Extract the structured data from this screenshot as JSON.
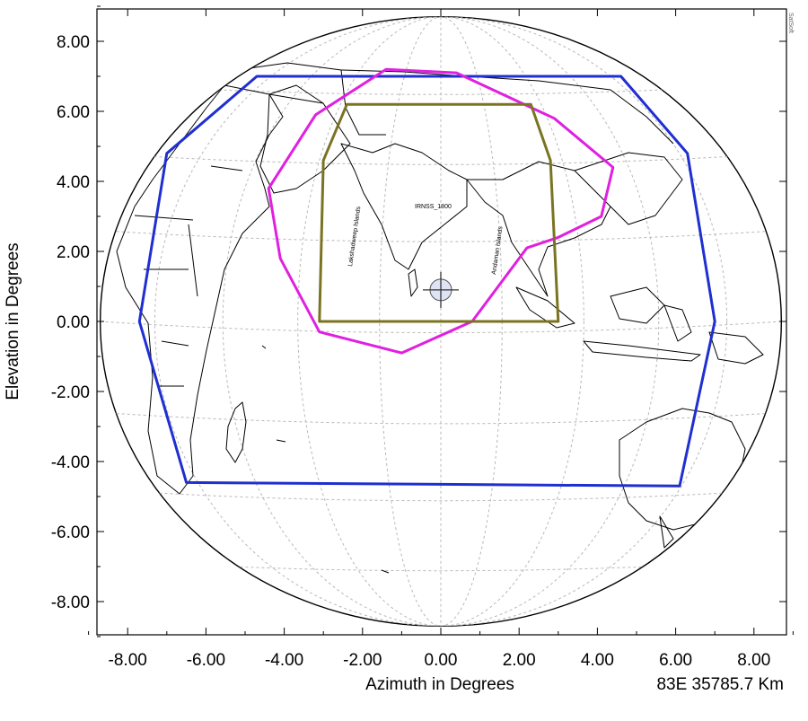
{
  "plot": {
    "xlabel": "Azimuth in Degrees",
    "ylabel": "Elevation in Degrees",
    "footer": "83E 35785.7 Km",
    "corner_mark": "SatSoft",
    "beam_label": "IRNSS_1800",
    "label_left": "Lakshadweep Islands",
    "label_right": "Andaman Islands"
  },
  "chart_data": {
    "type": "map",
    "xlim": [
      -9.0,
      9.0
    ],
    "ylim": [
      -9.0,
      9.0
    ],
    "x_ticks": [
      "-8.00",
      "-6.00",
      "-4.00",
      "-2.00",
      "0.00",
      "2.00",
      "4.00",
      "6.00",
      "8.00"
    ],
    "y_ticks": [
      "8.00",
      "6.00",
      "4.00",
      "2.00",
      "0.00",
      "-2.00",
      "-4.00",
      "-6.00",
      "-8.00"
    ],
    "grid": true,
    "earth_disk_radius_deg": 8.7,
    "boresight": {
      "az": 0.0,
      "el": 0.9
    },
    "series": [
      {
        "color": "#1f2fd0",
        "points": [
          [
            -4.7,
            7.0
          ],
          [
            4.6,
            7.0
          ],
          [
            6.3,
            4.8
          ],
          [
            7.0,
            0.0
          ],
          [
            6.1,
            -4.7
          ],
          [
            -6.5,
            -4.6
          ],
          [
            -7.7,
            0.0
          ],
          [
            -7.0,
            4.8
          ]
        ]
      },
      {
        "color": "#e020e0",
        "points": [
          [
            -1.4,
            7.2
          ],
          [
            0.4,
            7.1
          ],
          [
            2.9,
            5.8
          ],
          [
            4.4,
            4.4
          ],
          [
            4.1,
            3.0
          ],
          [
            3.0,
            2.4
          ],
          [
            2.2,
            2.1
          ],
          [
            1.2,
            0.6
          ],
          [
            0.8,
            0.0
          ],
          [
            -1.0,
            -0.9
          ],
          [
            -3.1,
            -0.3
          ],
          [
            -4.1,
            1.8
          ],
          [
            -4.4,
            3.8
          ],
          [
            -3.2,
            5.9
          ]
        ]
      },
      {
        "color": "#7a7422",
        "points": [
          [
            -2.4,
            6.2
          ],
          [
            2.3,
            6.2
          ],
          [
            2.8,
            4.6
          ],
          [
            3.0,
            0.0
          ],
          [
            -3.1,
            0.0
          ],
          [
            -3.0,
            4.6
          ]
        ]
      }
    ]
  }
}
